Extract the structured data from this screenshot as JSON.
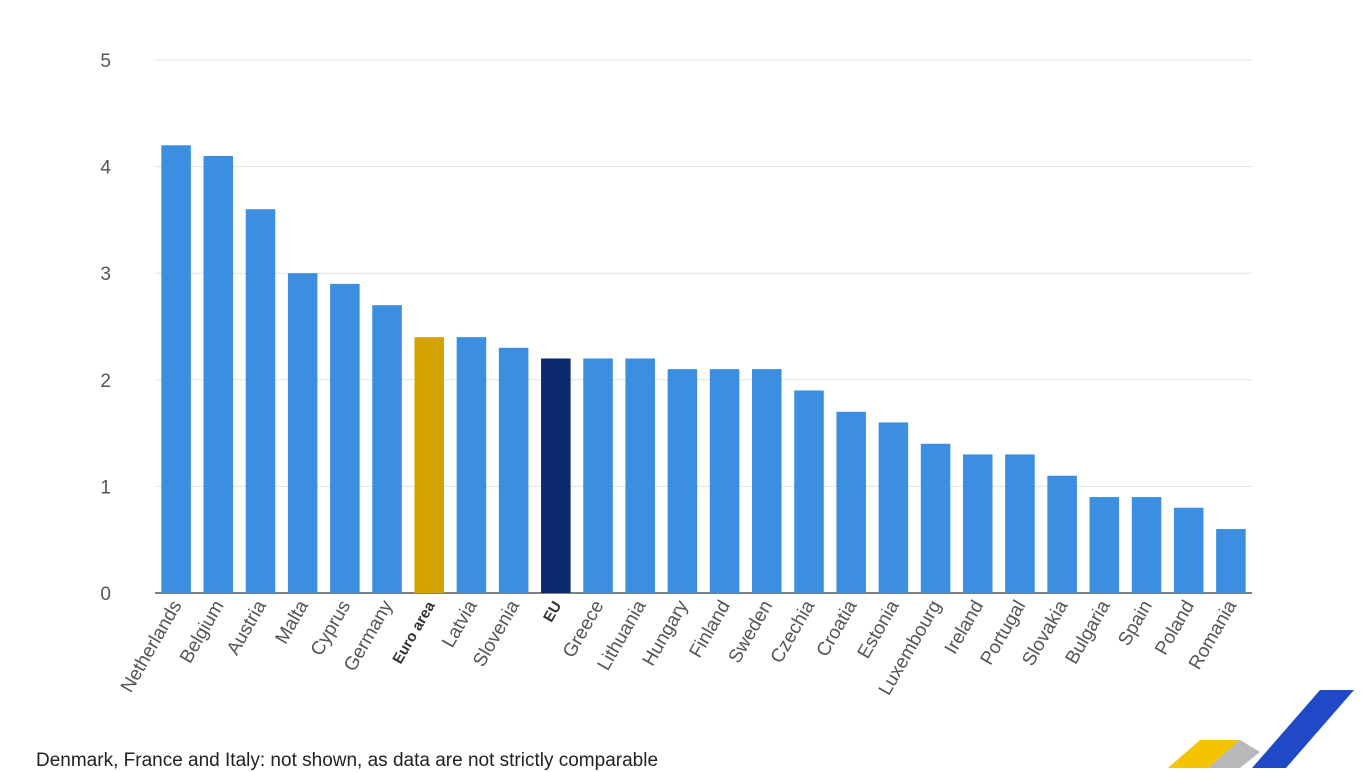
{
  "chart_data": {
    "type": "bar",
    "categories": [
      "Netherlands",
      "Belgium",
      "Austria",
      "Malta",
      "Cyprus",
      "Germany",
      "Euro area",
      "Latvia",
      "Slovenia",
      "EU",
      "Greece",
      "Lithuania",
      "Hungary",
      "Finland",
      "Sweden",
      "Czechia",
      "Croatia",
      "Estonia",
      "Luxembourg",
      "Ireland",
      "Portugal",
      "Slovakia",
      "Bulgaria",
      "Spain",
      "Poland",
      "Romania"
    ],
    "values": [
      4.2,
      4.1,
      3.6,
      3.0,
      2.9,
      2.7,
      2.4,
      2.4,
      2.3,
      2.2,
      2.2,
      2.2,
      2.1,
      2.1,
      2.1,
      1.9,
      1.7,
      1.6,
      1.4,
      1.3,
      1.3,
      1.1,
      0.9,
      0.9,
      0.8,
      0.6
    ],
    "highlight": {
      "Euro area": "#d4a300",
      "EU": "#0d2a6e"
    },
    "bold_categories": [
      "Euro area",
      "EU"
    ],
    "bar_color": "#3b8ee0",
    "ylim": [
      0,
      5
    ],
    "yticks": [
      0,
      1,
      2,
      3,
      4,
      5
    ],
    "grid": true,
    "title": "",
    "xlabel": "",
    "ylabel": ""
  },
  "footnote": "Denmark, France and Italy: not shown, as data are not strictly comparable",
  "colors": {
    "grid": "#dde3ea",
    "axis": "#555555",
    "logo_yellow": "#f5c400",
    "logo_blue": "#1f49c7",
    "logo_gray": "#b8b8b8"
  }
}
